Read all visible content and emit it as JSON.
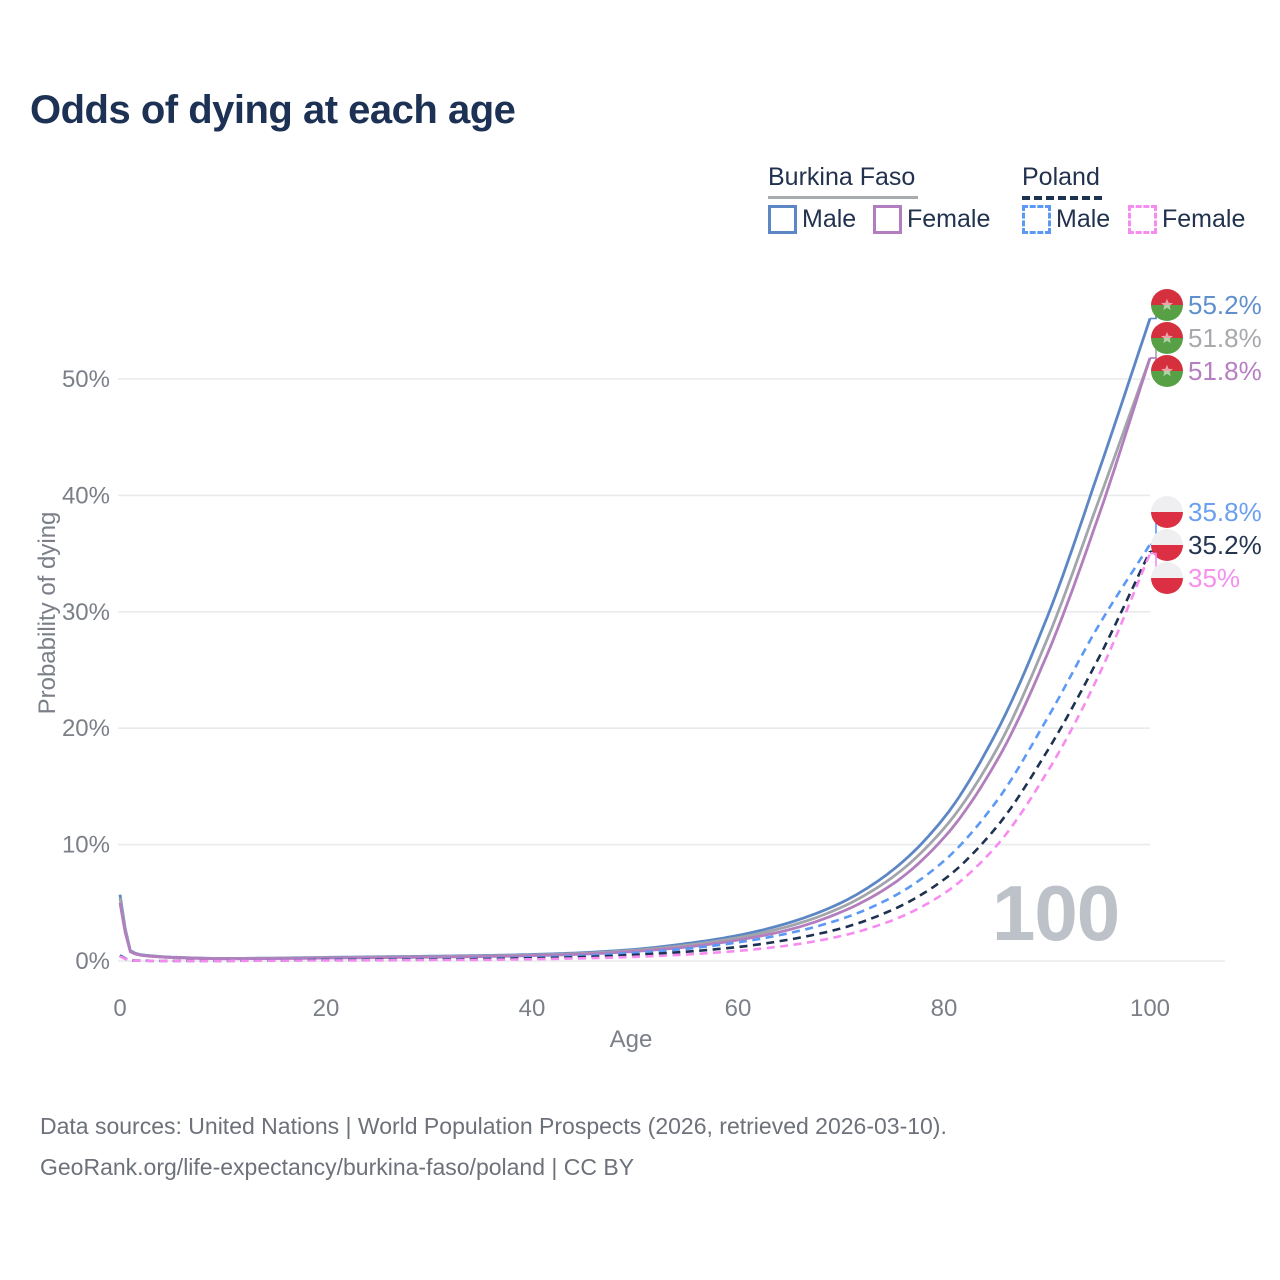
{
  "title": "Odds of dying at each age",
  "watermark": "100",
  "legend": {
    "groups": [
      {
        "country": "Burkina Faso",
        "line_style": "solid",
        "underline_color": "#a8abb0",
        "items": [
          {
            "label": "Male",
            "color": "#5d87c4",
            "dash": false
          },
          {
            "label": "Female",
            "color": "#b27ebd",
            "dash": false
          }
        ]
      },
      {
        "country": "Poland",
        "line_style": "dashed",
        "underline_color": "#1d3250",
        "items": [
          {
            "label": "Male",
            "color": "#5c99f5",
            "dash": true
          },
          {
            "label": "Female",
            "color": "#f78cf0",
            "dash": true
          }
        ]
      }
    ]
  },
  "chart_data": {
    "type": "line",
    "title": "Odds of dying at each age",
    "xlabel": "Age",
    "ylabel": "Probability of dying",
    "xlim": [
      0,
      100
    ],
    "ylim": [
      0,
      58
    ],
    "grid": true,
    "x_ticks": [
      0,
      20,
      40,
      60,
      80,
      100
    ],
    "y_tick_labels": [
      "0%",
      "10%",
      "20%",
      "30%",
      "40%",
      "50%"
    ],
    "y_tick_values": [
      0,
      10,
      20,
      30,
      40,
      50
    ],
    "ages": [
      0,
      1,
      2,
      3,
      5,
      10,
      15,
      20,
      25,
      30,
      35,
      40,
      45,
      50,
      55,
      60,
      65,
      70,
      75,
      80,
      85,
      90,
      95,
      100
    ],
    "series": [
      {
        "name": "Burkina Faso Male",
        "country": "Burkina Faso",
        "sex": "Male",
        "color": "#5d87c4",
        "dash": false,
        "flag": "burkina-faso",
        "end_label": "55.2%",
        "label_color": "#6090cc",
        "values": [
          5.7,
          0.9,
          0.55,
          0.45,
          0.33,
          0.22,
          0.25,
          0.31,
          0.36,
          0.41,
          0.47,
          0.56,
          0.72,
          1.0,
          1.5,
          2.2,
          3.3,
          5.0,
          7.8,
          12.3,
          19.5,
          29.5,
          42.0,
          55.2
        ]
      },
      {
        "name": "Burkina Faso Both sexes",
        "country": "Burkina Faso",
        "sex": "Both",
        "color": "#a2a5aa",
        "dash": false,
        "flag": "burkina-faso",
        "end_label": "51.8%",
        "label_color": "#a7a9ad",
        "values": [
          5.4,
          0.85,
          0.52,
          0.42,
          0.31,
          0.21,
          0.23,
          0.28,
          0.32,
          0.37,
          0.43,
          0.51,
          0.65,
          0.92,
          1.35,
          2.0,
          3.0,
          4.6,
          7.2,
          11.4,
          18.0,
          27.6,
          39.5,
          51.8
        ]
      },
      {
        "name": "Burkina Faso Female",
        "country": "Burkina Faso",
        "sex": "Female",
        "color": "#b27ebd",
        "dash": false,
        "flag": "burkina-faso",
        "end_label": "51.8%",
        "label_color": "#b77fc2",
        "values": [
          5.0,
          0.8,
          0.5,
          0.4,
          0.3,
          0.2,
          0.21,
          0.25,
          0.29,
          0.33,
          0.38,
          0.46,
          0.59,
          0.83,
          1.2,
          1.8,
          2.7,
          4.2,
          6.6,
          10.6,
          17.0,
          26.3,
          38.2,
          51.8
        ]
      },
      {
        "name": "Poland Male",
        "country": "Poland",
        "sex": "Male",
        "color": "#5c99f5",
        "dash": true,
        "flag": "poland",
        "end_label": "35.8%",
        "label_color": "#6b9ff0",
        "values": [
          0.5,
          0.05,
          0.03,
          0.02,
          0.02,
          0.02,
          0.06,
          0.11,
          0.13,
          0.16,
          0.21,
          0.3,
          0.45,
          0.7,
          1.05,
          1.6,
          2.4,
          3.6,
          5.5,
          8.6,
          13.6,
          20.8,
          28.8,
          35.8
        ]
      },
      {
        "name": "Poland Both sexes",
        "country": "Poland",
        "sex": "Both",
        "color": "#1d3250",
        "dash": true,
        "flag": "poland",
        "end_label": "35.2%",
        "label_color": "#25354f",
        "values": [
          0.45,
          0.04,
          0.025,
          0.02,
          0.015,
          0.015,
          0.045,
          0.08,
          0.1,
          0.12,
          0.16,
          0.23,
          0.34,
          0.53,
          0.8,
          1.2,
          1.85,
          2.8,
          4.4,
          7.0,
          11.4,
          18.0,
          26.0,
          35.2
        ]
      },
      {
        "name": "Poland Female",
        "country": "Poland",
        "sex": "Female",
        "color": "#f78cf0",
        "dash": true,
        "flag": "poland",
        "end_label": "35%",
        "label_color": "#f590ef",
        "values": [
          0.4,
          0.04,
          0.02,
          0.015,
          0.012,
          0.012,
          0.03,
          0.05,
          0.06,
          0.08,
          0.1,
          0.15,
          0.23,
          0.36,
          0.56,
          0.87,
          1.35,
          2.15,
          3.5,
          5.8,
          9.8,
          16.2,
          24.5,
          35.0
        ]
      }
    ]
  },
  "footer": {
    "line1": "Data sources: United Nations | World Population Prospects (2026, retrieved 2026-03-10).",
    "line2": "GeoRank.org/life-expectancy/burkina-faso/poland | CC BY"
  }
}
